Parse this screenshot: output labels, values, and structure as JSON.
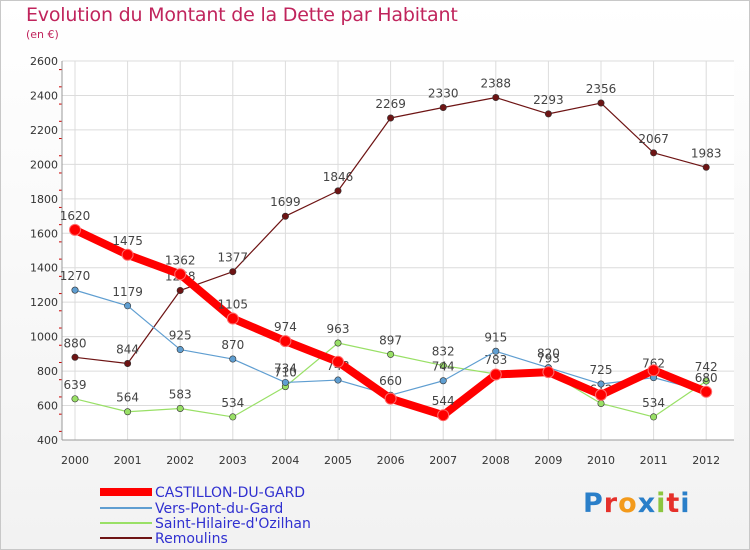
{
  "title": "Evolution du Montant de la Dette par Habitant",
  "subtitle": "(en €)",
  "logo": {
    "text": "Proxiti",
    "letters": [
      "P",
      "r",
      "o",
      "x",
      "i",
      "t",
      "i"
    ],
    "colors": [
      "#2a7fc9",
      "#e5302a",
      "#f39a1b",
      "#2a7fc9",
      "#8cc63f",
      "#e5302a",
      "#2a7fc9"
    ]
  },
  "chart_data": {
    "type": "line",
    "categories": [
      "2000",
      "2001",
      "2002",
      "2003",
      "2004",
      "2005",
      "2006",
      "2007",
      "2008",
      "2009",
      "2010",
      "2011",
      "2012"
    ],
    "ylim": [
      400,
      2600
    ],
    "yticks": [
      400,
      600,
      800,
      1000,
      1200,
      1400,
      1600,
      1800,
      2000,
      2200,
      2400,
      2600
    ],
    "grid": true,
    "legend_position": "bottom-left",
    "series": [
      {
        "name": "CASTILLON-DU-GARD",
        "color": "#ff0000",
        "values": [
          1620,
          1475,
          1362,
          1105,
          974,
          854,
          640,
          544,
          780,
          794,
          662,
          805,
          680
        ],
        "labels_shown": [
          "1620",
          "1475",
          "1362",
          "1105",
          "974",
          "",
          "",
          "544",
          "",
          "",
          "",
          "",
          ""
        ]
      },
      {
        "name": "Vers-Pont-du-Gard",
        "color": "#5f9ed1",
        "values": [
          1270,
          1179,
          925,
          870,
          734,
          748,
          660,
          744,
          915,
          820,
          725,
          762,
          680
        ],
        "labels_shown": [
          "1270",
          "1179",
          "925",
          "870",
          "734",
          "748",
          "660",
          "744",
          "915",
          "820",
          "725",
          "762",
          "680"
        ]
      },
      {
        "name": "Saint-Hilaire-d'Ozilhan",
        "color": "#99e066",
        "values": [
          639,
          564,
          583,
          534,
          710,
          963,
          897,
          832,
          783,
          793,
          612,
          534,
          742
        ],
        "labels_shown": [
          "639",
          "564",
          "583",
          "534",
          "710",
          "963",
          "897",
          "832",
          "783",
          "793",
          "612",
          "534",
          "742"
        ]
      },
      {
        "name": "Remoulins",
        "color": "#6e1414",
        "values": [
          880,
          844,
          1268,
          1377,
          1699,
          1846,
          2269,
          2330,
          2388,
          2293,
          2356,
          2067,
          1983
        ],
        "labels_shown": [
          "880",
          "844",
          "1268",
          "1377",
          "1699",
          "1846",
          "2269",
          "2330",
          "2388",
          "2293",
          "2356",
          "2067",
          "1983"
        ]
      }
    ]
  }
}
